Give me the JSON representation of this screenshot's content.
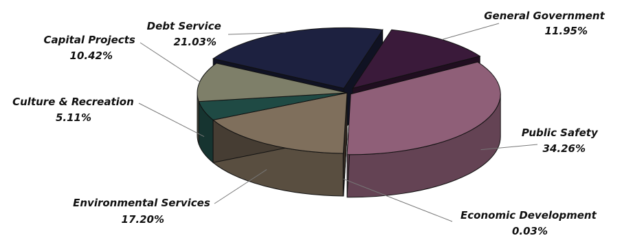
{
  "chart_data": {
    "type": "pie",
    "title": "",
    "slices": [
      {
        "label": "General Government",
        "value_text": "11.95%",
        "value": 11.95,
        "color": "#3a1a3a"
      },
      {
        "label": "Public Safety",
        "value_text": "34.26%",
        "value": 34.26,
        "color": "#8f5f78"
      },
      {
        "label": "Economic Development",
        "value_text": "0.03%",
        "value": 0.03,
        "color": "#5c4b3a"
      },
      {
        "label": "Environmental Services",
        "value_text": "17.20%",
        "value": 17.2,
        "color": "#7f6f5c"
      },
      {
        "label": "Culture & Recreation",
        "value_text": "5.11%",
        "value": 5.11,
        "color": "#1f4a44"
      },
      {
        "label": "Capital Projects",
        "value_text": "10.42%",
        "value": 10.42,
        "color": "#7e7f69"
      },
      {
        "label": "Debt Service",
        "value_text": "21.03%",
        "value": 21.03,
        "color": "#1d2140"
      }
    ]
  }
}
